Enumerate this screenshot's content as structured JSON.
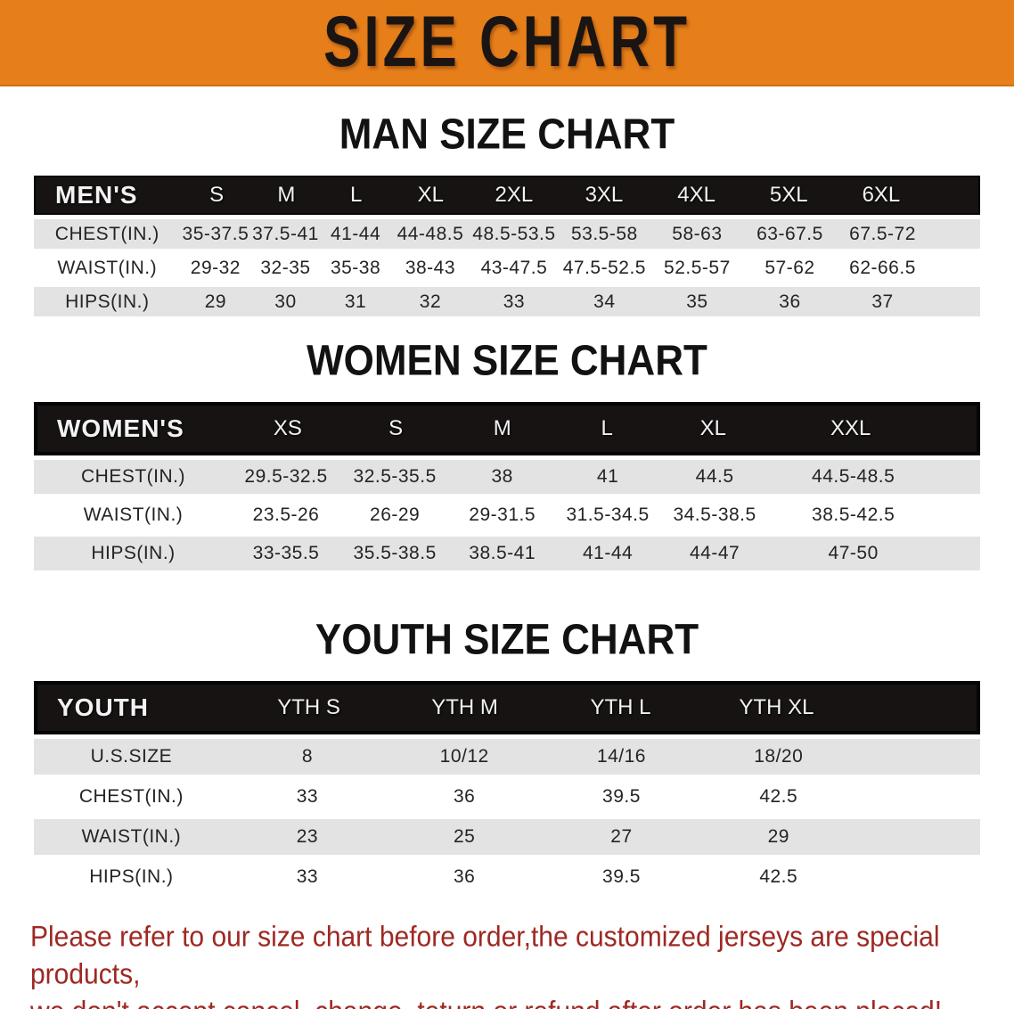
{
  "banner": {
    "title": "SIZE CHART"
  },
  "colors": {
    "accent": "#e67e1a",
    "table_header_bg": "#171313",
    "row_stripe": "#e3e3e3",
    "disclaimer_text": "#9e2823"
  },
  "sections": {
    "mens": {
      "heading": "MAN SIZE CHART",
      "corner_label": "MEN'S",
      "sizes": [
        "S",
        "M",
        "L",
        "XL",
        "2XL",
        "3XL",
        "4XL",
        "5XL",
        "6XL"
      ],
      "rows": [
        {
          "label": "CHEST(IN.)",
          "values": [
            "35-37.5",
            "37.5-41",
            "41-44",
            "44-48.5",
            "48.5-53.5",
            "53.5-58",
            "58-63",
            "63-67.5",
            "67.5-72"
          ]
        },
        {
          "label": "WAIST(IN.)",
          "values": [
            "29-32",
            "32-35",
            "35-38",
            "38-43",
            "43-47.5",
            "47.5-52.5",
            "52.5-57",
            "57-62",
            "62-66.5"
          ]
        },
        {
          "label": "HIPS(IN.)",
          "values": [
            "29",
            "30",
            "31",
            "32",
            "33",
            "34",
            "35",
            "36",
            "37"
          ]
        }
      ]
    },
    "womens": {
      "heading": "WOMEN SIZE CHART",
      "corner_label": "WOMEN'S",
      "sizes": [
        "XS",
        "S",
        "M",
        "L",
        "XL",
        "XXL"
      ],
      "rows": [
        {
          "label": "CHEST(IN.)",
          "values": [
            "29.5-32.5",
            "32.5-35.5",
            "38",
            "41",
            "44.5",
            "44.5-48.5"
          ]
        },
        {
          "label": "WAIST(IN.)",
          "values": [
            "23.5-26",
            "26-29",
            "29-31.5",
            "31.5-34.5",
            "34.5-38.5",
            "38.5-42.5"
          ]
        },
        {
          "label": "HIPS(IN.)",
          "values": [
            "33-35.5",
            "35.5-38.5",
            "38.5-41",
            "41-44",
            "44-47",
            "47-50"
          ]
        }
      ]
    },
    "youth": {
      "heading": "YOUTH SIZE CHART",
      "corner_label": "YOUTH",
      "sizes": [
        "YTH S",
        "YTH M",
        "YTH L",
        "YTH XL"
      ],
      "rows": [
        {
          "label": "U.S.SIZE",
          "values": [
            "8",
            "10/12",
            "14/16",
            "18/20"
          ]
        },
        {
          "label": "CHEST(IN.)",
          "values": [
            "33",
            "36",
            "39.5",
            "42.5"
          ]
        },
        {
          "label": "WAIST(IN.)",
          "values": [
            "23",
            "25",
            "27",
            "29"
          ]
        },
        {
          "label": "HIPS(IN.)",
          "values": [
            "33",
            "36",
            "39.5",
            "42.5"
          ]
        }
      ]
    }
  },
  "disclaimer": {
    "line1": "Please refer to our size chart before order,the customized jerseys are special products,",
    "line2": "we don't accept cancel, change, teturn or refund after order has been placed!"
  }
}
